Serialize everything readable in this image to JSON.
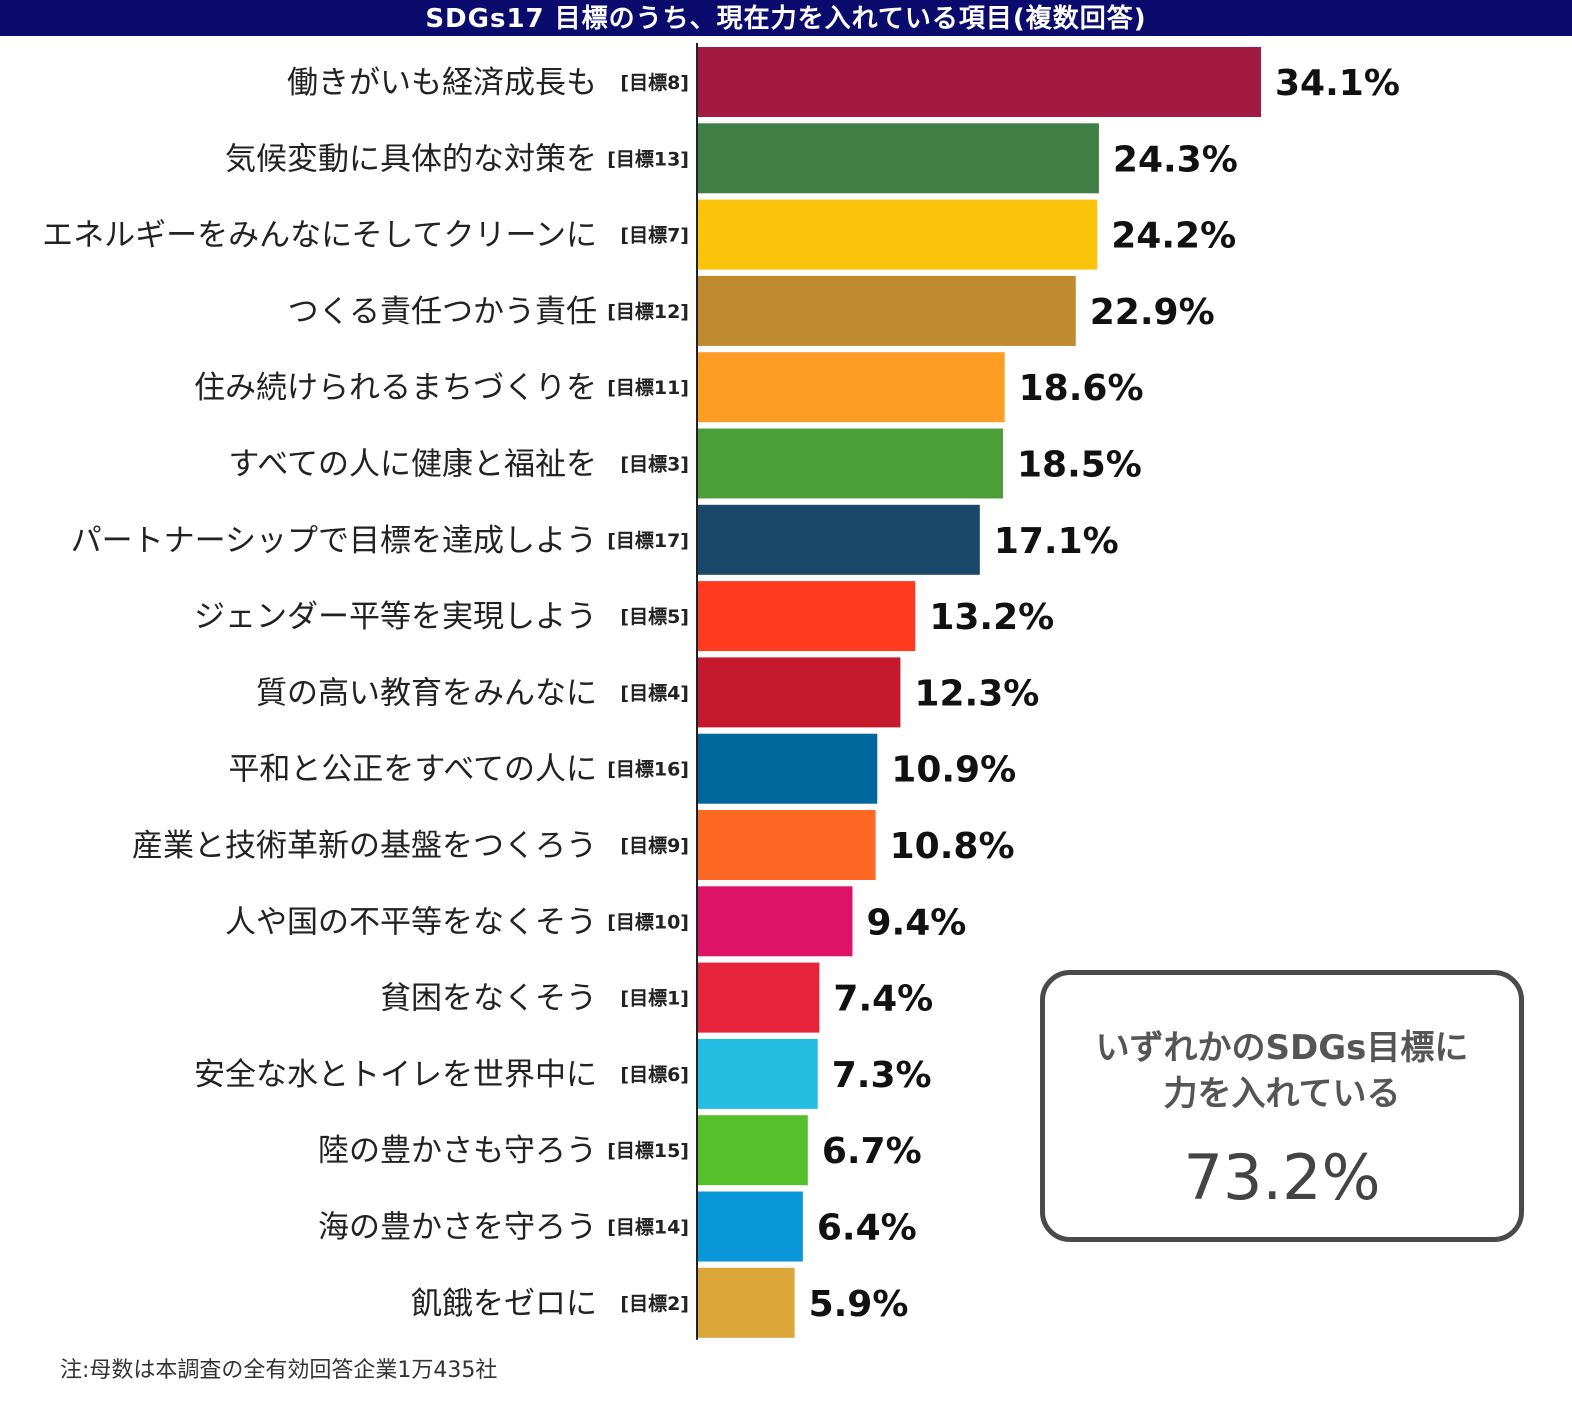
{
  "chart_data": {
    "type": "bar",
    "orientation": "horizontal",
    "title": "SDGs17 目標のうち、現在力を入れている項目(複数回答)",
    "unit": "%",
    "xlim": [
      0,
      34.1
    ],
    "bars": [
      {
        "label": "働きがいも経済成長も",
        "goal": "[目標8]",
        "value": 34.1,
        "display": "34.1%",
        "color": "#a21942"
      },
      {
        "label": "気候変動に具体的な対策を",
        "goal": "[目標13]",
        "value": 24.3,
        "display": "24.3%",
        "color": "#3f7e44"
      },
      {
        "label": "エネルギーをみんなにそしてクリーンに",
        "goal": "[目標7]",
        "value": 24.2,
        "display": "24.2%",
        "color": "#fcc30b"
      },
      {
        "label": "つくる責任つかう責任",
        "goal": "[目標12]",
        "value": 22.9,
        "display": "22.9%",
        "color": "#bf8b2e"
      },
      {
        "label": "住み続けられるまちづくりを",
        "goal": "[目標11]",
        "value": 18.6,
        "display": "18.6%",
        "color": "#fd9d24"
      },
      {
        "label": "すべての人に健康と福祉を",
        "goal": "[目標3]",
        "value": 18.5,
        "display": "18.5%",
        "color": "#4c9f38"
      },
      {
        "label": "パートナーシップで目標を達成しよう",
        "goal": "[目標17]",
        "value": 17.1,
        "display": "17.1%",
        "color": "#19486a"
      },
      {
        "label": "ジェンダー平等を実現しよう",
        "goal": "[目標5]",
        "value": 13.2,
        "display": "13.2%",
        "color": "#ff3a21"
      },
      {
        "label": "質の高い教育をみんなに",
        "goal": "[目標4]",
        "value": 12.3,
        "display": "12.3%",
        "color": "#c5192d"
      },
      {
        "label": "平和と公正をすべての人に",
        "goal": "[目標16]",
        "value": 10.9,
        "display": "10.9%",
        "color": "#00689d"
      },
      {
        "label": "産業と技術革新の基盤をつくろう",
        "goal": "[目標9]",
        "value": 10.8,
        "display": "10.8%",
        "color": "#fd6925"
      },
      {
        "label": "人や国の不平等をなくそう",
        "goal": "[目標10]",
        "value": 9.4,
        "display": "9.4%",
        "color": "#dd1367"
      },
      {
        "label": "貧困をなくそう",
        "goal": "[目標1]",
        "value": 7.4,
        "display": "7.4%",
        "color": "#e5243b"
      },
      {
        "label": "安全な水とトイレを世界中に",
        "goal": "[目標6]",
        "value": 7.3,
        "display": "7.3%",
        "color": "#26bde2"
      },
      {
        "label": "陸の豊かさも守ろう",
        "goal": "[目標15]",
        "value": 6.7,
        "display": "6.7%",
        "color": "#56c02b"
      },
      {
        "label": "海の豊かさを守ろう",
        "goal": "[目標14]",
        "value": 6.4,
        "display": "6.4%",
        "color": "#0a97d9"
      },
      {
        "label": "飢餓をゼロに",
        "goal": "[目標2]",
        "value": 5.9,
        "display": "5.9%",
        "color": "#dda63a"
      }
    ]
  },
  "callout": {
    "line1": "いずれかのSDGs目標に",
    "line2": "力を入れている",
    "value": "73.2%"
  },
  "note": "注:母数は本調査の全有効回答企業1万435社"
}
